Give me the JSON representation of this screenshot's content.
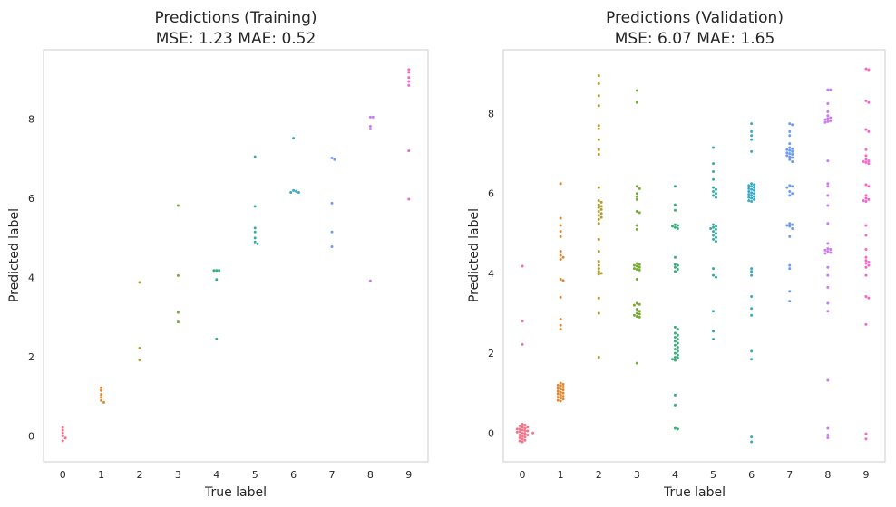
{
  "chart_data": [
    {
      "type": "scatter",
      "title": "Predictions (Training)",
      "subtitle": "MSE: 1.23 MAE: 0.52",
      "xlabel": "True label",
      "ylabel": "Predicted label",
      "categories": [
        "0",
        "1",
        "2",
        "3",
        "4",
        "5",
        "6",
        "7",
        "8",
        "9"
      ],
      "yticks": [
        "0",
        "2",
        "4",
        "6",
        "8"
      ],
      "ylim": [
        -0.65,
        9.75
      ],
      "grid": false,
      "colors": [
        "#f77189",
        "#dc8932",
        "#ae9d31",
        "#77ab31",
        "#33b07a",
        "#36ada4",
        "#38a9c5",
        "#6e9bf4",
        "#cc7af4",
        "#f565cc"
      ],
      "series": [
        {
          "category": "0",
          "values": [
            0.22,
            0.15,
            0.08,
            0.0,
            -0.05,
            -0.12
          ]
        },
        {
          "category": "1",
          "values": [
            1.22,
            1.15,
            1.05,
            0.98,
            0.9,
            0.85
          ]
        },
        {
          "category": "2",
          "values": [
            3.88,
            2.22,
            1.92
          ]
        },
        {
          "category": "3",
          "values": [
            5.82,
            4.05,
            3.12,
            2.88
          ]
        },
        {
          "category": "4",
          "values": [
            4.18,
            4.18,
            4.18,
            3.95,
            2.45
          ]
        },
        {
          "category": "5",
          "values": [
            7.05,
            5.8,
            5.25,
            5.15,
            5.0,
            4.9,
            4.85
          ]
        },
        {
          "category": "6",
          "values": [
            7.52,
            6.2,
            6.18,
            6.15,
            6.15
          ]
        },
        {
          "category": "7",
          "values": [
            7.02,
            6.98,
            5.88,
            5.15,
            4.78
          ]
        },
        {
          "category": "8",
          "values": [
            8.05,
            8.05,
            7.82,
            7.75,
            3.92
          ]
        },
        {
          "category": "9",
          "values": [
            9.25,
            9.18,
            9.05,
            8.95,
            8.85,
            7.2,
            5.98
          ]
        }
      ]
    },
    {
      "type": "scatter",
      "title": "Predictions (Validation)",
      "subtitle": "MSE: 6.07 MAE: 1.65",
      "xlabel": "True label",
      "ylabel": "Predicted label",
      "categories": [
        "0",
        "1",
        "2",
        "3",
        "4",
        "5",
        "6",
        "7",
        "8",
        "9"
      ],
      "yticks": [
        "0",
        "2",
        "4",
        "6",
        "8"
      ],
      "ylim": [
        -0.72,
        9.6
      ],
      "grid": false,
      "colors": [
        "#f77189",
        "#dc8932",
        "#ae9d31",
        "#77ab31",
        "#33b07a",
        "#36ada4",
        "#38a9c5",
        "#6e9bf4",
        "#cc7af4",
        "#f565cc"
      ],
      "series": [
        {
          "category": "0",
          "values": [
            4.18,
            2.8,
            2.22,
            0.22,
            0.2,
            0.18,
            0.15,
            0.15,
            0.12,
            0.1,
            0.1,
            0.08,
            0.05,
            0.05,
            0.03,
            0.02,
            0.0,
            0.0,
            -0.02,
            -0.05,
            -0.05,
            -0.08,
            -0.1,
            -0.12,
            -0.15,
            -0.18,
            -0.2,
            -0.22
          ]
        },
        {
          "category": "1",
          "values": [
            6.25,
            5.38,
            5.2,
            5.05,
            4.92,
            4.55,
            4.45,
            4.4,
            4.35,
            3.85,
            3.82,
            3.4,
            2.85,
            2.7,
            2.6,
            1.25,
            1.22,
            1.2,
            1.18,
            1.15,
            1.12,
            1.1,
            1.08,
            1.05,
            1.02,
            1.0,
            0.98,
            0.95,
            0.92,
            0.9,
            0.88,
            0.85,
            0.82,
            0.8
          ]
        },
        {
          "category": "2",
          "values": [
            8.95,
            8.75,
            8.45,
            8.2,
            7.7,
            7.62,
            7.35,
            7.1,
            6.98,
            6.15,
            5.82,
            5.78,
            5.72,
            5.68,
            5.65,
            5.6,
            5.55,
            5.5,
            5.45,
            5.4,
            5.35,
            5.25,
            4.85,
            4.55,
            4.3,
            4.2,
            4.12,
            4.05,
            4.0,
            3.98,
            3.38,
            3.0,
            1.9
          ]
        },
        {
          "category": "3",
          "values": [
            8.58,
            8.28,
            6.18,
            6.12,
            6.0,
            5.92,
            5.85,
            5.55,
            5.52,
            5.2,
            5.1,
            4.25,
            4.22,
            4.2,
            4.18,
            4.15,
            4.12,
            4.1,
            4.08,
            3.85,
            3.25,
            3.22,
            3.2,
            3.1,
            3.05,
            3.0,
            2.98,
            2.95,
            2.92,
            2.9,
            1.75
          ]
        },
        {
          "category": "4",
          "values": [
            6.18,
            5.72,
            5.58,
            5.22,
            5.2,
            5.18,
            5.15,
            5.12,
            4.4,
            4.22,
            4.2,
            4.15,
            4.1,
            4.05,
            2.65,
            2.6,
            2.5,
            2.45,
            2.4,
            2.35,
            2.3,
            2.25,
            2.2,
            2.15,
            2.1,
            2.05,
            2.0,
            1.95,
            1.9,
            1.88,
            1.85,
            1.82,
            0.95,
            0.7,
            0.12,
            0.1
          ]
        },
        {
          "category": "5",
          "values": [
            7.15,
            6.75,
            6.55,
            6.35,
            6.15,
            6.1,
            6.05,
            6.0,
            5.95,
            5.9,
            5.22,
            5.18,
            5.15,
            5.12,
            5.1,
            5.05,
            5.0,
            4.95,
            4.9,
            4.85,
            4.8,
            4.12,
            3.95,
            3.9,
            3.05,
            2.55,
            2.35
          ]
        },
        {
          "category": "6",
          "values": [
            7.75,
            7.55,
            7.45,
            7.35,
            7.05,
            6.25,
            6.22,
            6.2,
            6.18,
            6.15,
            6.12,
            6.1,
            6.08,
            6.05,
            6.02,
            6.0,
            5.98,
            5.95,
            5.92,
            5.9,
            5.88,
            5.85,
            5.82,
            5.8,
            4.12,
            4.05,
            3.95,
            3.42,
            3.12,
            2.95,
            2.05,
            1.85,
            -0.1,
            -0.22
          ]
        },
        {
          "category": "7",
          "values": [
            7.75,
            7.72,
            7.55,
            7.45,
            7.25,
            7.15,
            7.12,
            7.1,
            7.08,
            7.05,
            7.02,
            7.0,
            6.98,
            6.95,
            6.92,
            6.9,
            6.85,
            6.8,
            6.2,
            6.18,
            6.15,
            6.05,
            6.0,
            5.95,
            5.25,
            5.22,
            5.2,
            5.18,
            5.12,
            4.92,
            4.2,
            4.12,
            3.55,
            3.3
          ]
        },
        {
          "category": "8",
          "values": [
            8.6,
            8.6,
            8.25,
            8.05,
            7.95,
            7.9,
            7.88,
            7.85,
            7.82,
            7.8,
            7.78,
            6.82,
            6.25,
            6.18,
            5.95,
            5.7,
            5.25,
            4.75,
            4.62,
            4.6,
            4.58,
            4.55,
            4.52,
            4.5,
            4.15,
            3.95,
            3.65,
            3.25,
            3.05,
            1.32,
            0.12,
            -0.05,
            -0.12
          ]
        },
        {
          "category": "9",
          "values": [
            9.12,
            9.1,
            8.32,
            8.28,
            7.6,
            7.55,
            7.1,
            6.95,
            6.85,
            6.82,
            6.8,
            6.78,
            6.75,
            6.22,
            6.18,
            5.95,
            5.88,
            5.85,
            5.82,
            5.8,
            5.2,
            4.95,
            4.6,
            4.4,
            4.32,
            4.28,
            4.25,
            4.2,
            4.15,
            3.95,
            3.42,
            3.38,
            2.72,
            -0.02,
            -0.15
          ]
        }
      ]
    }
  ]
}
